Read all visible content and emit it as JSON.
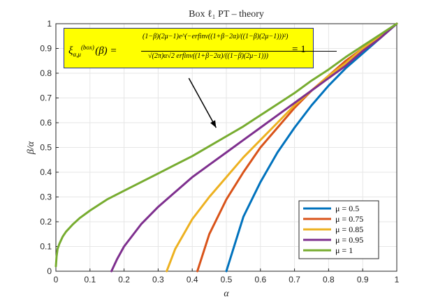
{
  "chart_data": {
    "type": "line",
    "title": "Box ℓ₁ PT – theory",
    "xlabel": "α",
    "ylabel": "β/α",
    "xlim": [
      0,
      1
    ],
    "ylim": [
      0,
      1
    ],
    "grid": true,
    "legend_placement": "bottom-right",
    "x_ticks": [
      "0",
      "0.1",
      "0.2",
      "0.3",
      "0.4",
      "0.5",
      "0.6",
      "0.7",
      "0.8",
      "0.9",
      "1"
    ],
    "y_ticks": [
      "0",
      "0.1",
      "0.2",
      "0.3",
      "0.4",
      "0.5",
      "0.6",
      "0.7",
      "0.8",
      "0.9",
      "1"
    ],
    "series": [
      {
        "name": "μ = 0.5",
        "color": "#0072bd",
        "x": [
          0.5,
          0.55,
          0.6,
          0.65,
          0.7,
          0.75,
          0.8,
          0.85,
          0.9,
          0.95,
          1.0
        ],
        "y": [
          0.0,
          0.22,
          0.36,
          0.48,
          0.58,
          0.67,
          0.75,
          0.82,
          0.88,
          0.94,
          1.0
        ]
      },
      {
        "name": "μ = 0.75",
        "color": "#d95319",
        "x": [
          0.415,
          0.45,
          0.5,
          0.55,
          0.6,
          0.65,
          0.7,
          0.75,
          0.8,
          0.85,
          0.9,
          0.95,
          1.0
        ],
        "y": [
          0.0,
          0.15,
          0.29,
          0.4,
          0.5,
          0.58,
          0.66,
          0.73,
          0.79,
          0.85,
          0.9,
          0.95,
          1.0
        ]
      },
      {
        "name": "μ = 0.85",
        "color": "#edb120",
        "x": [
          0.325,
          0.35,
          0.4,
          0.45,
          0.5,
          0.55,
          0.6,
          0.65,
          0.7,
          0.75,
          0.8,
          0.85,
          0.9,
          0.95,
          1.0
        ],
        "y": [
          0.0,
          0.09,
          0.21,
          0.3,
          0.38,
          0.46,
          0.53,
          0.6,
          0.67,
          0.73,
          0.79,
          0.84,
          0.9,
          0.95,
          1.0
        ]
      },
      {
        "name": "μ = 0.95",
        "color": "#7e2f8e",
        "x": [
          0.163,
          0.18,
          0.2,
          0.25,
          0.3,
          0.35,
          0.4,
          0.45,
          0.5,
          0.55,
          0.6,
          0.65,
          0.7,
          0.75,
          0.8,
          0.85,
          0.9,
          0.95,
          1.0
        ],
        "y": [
          0.0,
          0.05,
          0.1,
          0.19,
          0.26,
          0.32,
          0.38,
          0.43,
          0.48,
          0.53,
          0.58,
          0.63,
          0.68,
          0.73,
          0.78,
          0.83,
          0.89,
          0.94,
          1.0
        ]
      },
      {
        "name": "μ = 1",
        "color": "#77ac30",
        "x": [
          0.0,
          0.002,
          0.005,
          0.01,
          0.02,
          0.03,
          0.05,
          0.07,
          0.1,
          0.15,
          0.2,
          0.25,
          0.3,
          0.35,
          0.4,
          0.45,
          0.5,
          0.55,
          0.6,
          0.65,
          0.7,
          0.75,
          0.8,
          0.85,
          0.9,
          0.95,
          1.0
        ],
        "y": [
          0.02,
          0.06,
          0.09,
          0.11,
          0.14,
          0.16,
          0.19,
          0.215,
          0.245,
          0.29,
          0.325,
          0.36,
          0.395,
          0.43,
          0.465,
          0.505,
          0.545,
          0.585,
          0.63,
          0.675,
          0.72,
          0.77,
          0.815,
          0.865,
          0.91,
          0.955,
          1.0
        ]
      }
    ],
    "annotation": {
      "formula_lhs": "ξ",
      "formula_lhs_sub": "α,μ",
      "formula_lhs_sup": "(box)",
      "formula_lhs_arg": "(β) =",
      "formula_numerator": "(1−β)(2μ−1)e^(−erfinv((1+β−2α)/((1−β)(2μ−1)))²)",
      "formula_denominator": "√(2π)α√2 erfinv((1+β−2α)/((1−β)(2μ−1)))",
      "formula_rhs": "= 1",
      "background": "#ffff00",
      "arrow_from": {
        "x": 0.39,
        "y": 0.78
      },
      "arrow_to": {
        "x": 0.47,
        "y": 0.58
      }
    }
  }
}
